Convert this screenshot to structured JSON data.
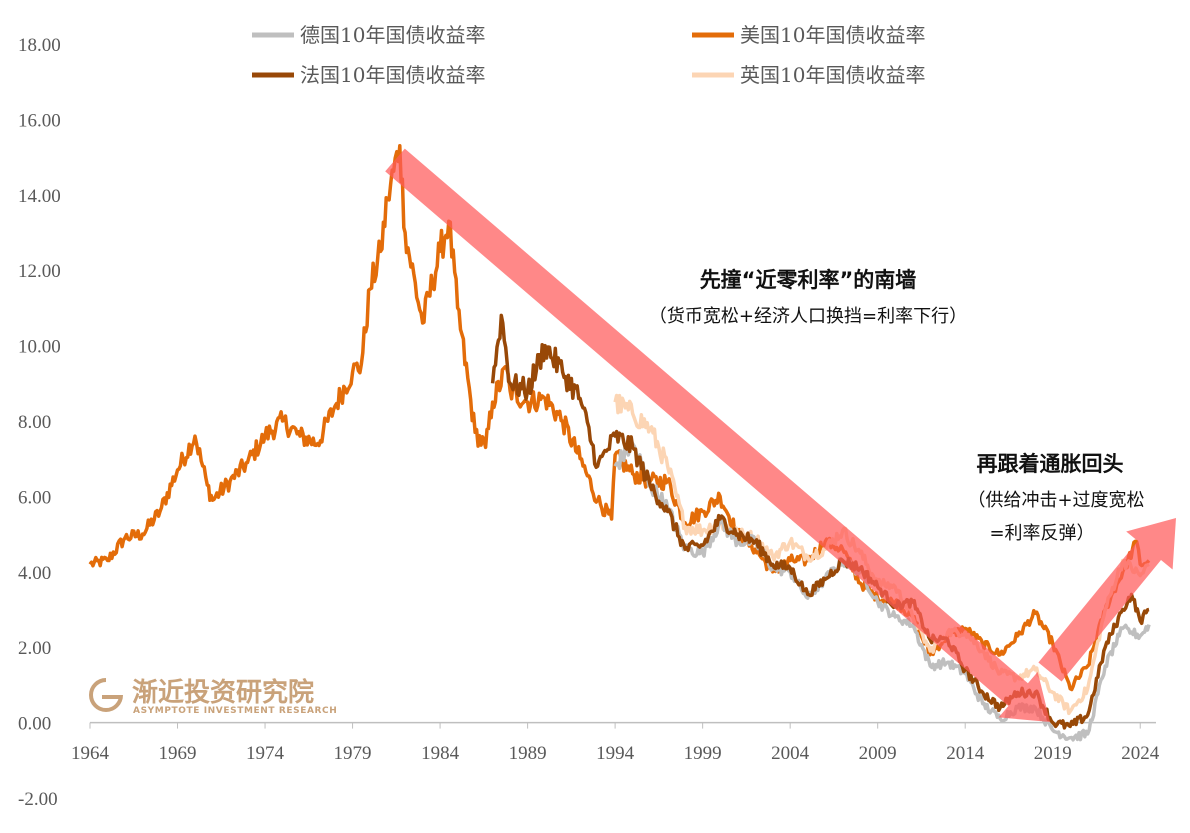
{
  "chart_data": {
    "type": "line",
    "title": "",
    "xlabel": "",
    "ylabel": "",
    "x_range": [
      1964,
      2024.9
    ],
    "ylim": [
      -2,
      18
    ],
    "y_ticks": [
      "18.00",
      "16.00",
      "14.00",
      "12.00",
      "10.00",
      "8.00",
      "6.00",
      "4.00",
      "2.00",
      "0.00",
      "-2.00"
    ],
    "y_tick_values": [
      18,
      16,
      14,
      12,
      10,
      8,
      6,
      4,
      2,
      0,
      -2
    ],
    "x_ticks": [
      "1964",
      "1969",
      "1974",
      "1979",
      "1984",
      "1989",
      "1994",
      "1999",
      "2004",
      "2009",
      "2014",
      "2019",
      "2024"
    ],
    "x_tick_values": [
      1964,
      1969,
      1974,
      1979,
      1984,
      1989,
      1994,
      1999,
      2004,
      2009,
      2014,
      2019,
      2024
    ],
    "series": [
      {
        "name": "德国10年国债收益率",
        "color": "#bfbfbf",
        "x": [
          1994,
          1995,
          1996,
          1997,
          1998,
          1999,
          2000,
          2001,
          2002,
          2003,
          2004,
          2005,
          2006,
          2007,
          2008,
          2009,
          2010,
          2011,
          2012,
          2013,
          2014,
          2015,
          2016,
          2017,
          2018,
          2019,
          2020,
          2021,
          2022,
          2022.8,
          2023,
          2023.5,
          2024,
          2024.5
        ],
        "values": [
          6.8,
          7.4,
          6.3,
          5.7,
          4.6,
          4.5,
          5.3,
          4.8,
          4.8,
          4.1,
          4.0,
          3.3,
          3.8,
          4.3,
          4.0,
          3.2,
          2.8,
          2.6,
          1.5,
          1.6,
          1.3,
          0.5,
          0.1,
          0.4,
          0.4,
          -0.2,
          -0.4,
          -0.3,
          1.5,
          2.3,
          2.5,
          2.4,
          2.3,
          2.6
        ]
      },
      {
        "name": "美国10年国债收益率",
        "color": "#e36c09",
        "x": [
          1964,
          1965,
          1966,
          1967,
          1968,
          1969,
          1970,
          1970.7,
          1971,
          1972,
          1973,
          1974,
          1975,
          1976,
          1977,
          1978,
          1979,
          1979.5,
          1980,
          1980.6,
          1981,
          1981.7,
          1982,
          1983,
          1984,
          1984.5,
          1985,
          1986,
          1986.6,
          1987,
          1987.8,
          1988,
          1989,
          1990,
          1991,
          1992,
          1993,
          1993.8,
          1994,
          1995,
          1996,
          1997,
          1998,
          1999,
          2000,
          2001,
          2002,
          2003,
          2004,
          2005,
          2006,
          2007,
          2008,
          2009,
          2010,
          2011,
          2012,
          2013,
          2014,
          2015,
          2016,
          2017,
          2018,
          2019,
          2020,
          2021,
          2022,
          2023,
          2023.8,
          2024,
          2024.5
        ],
        "values": [
          4.2,
          4.3,
          4.9,
          5.0,
          5.6,
          6.7,
          7.6,
          6.3,
          5.9,
          6.4,
          6.9,
          7.6,
          8.0,
          7.6,
          7.4,
          8.4,
          9.3,
          9.5,
          11.5,
          12.5,
          13.9,
          15.3,
          13.0,
          10.6,
          12.5,
          13.3,
          11.0,
          7.7,
          7.3,
          8.5,
          9.4,
          8.8,
          8.5,
          8.6,
          8.0,
          7.0,
          5.9,
          5.4,
          7.1,
          6.6,
          6.4,
          6.4,
          5.3,
          5.6,
          6.0,
          5.0,
          4.6,
          4.0,
          4.3,
          4.3,
          4.8,
          4.6,
          3.7,
          3.3,
          3.2,
          2.8,
          1.8,
          2.3,
          2.5,
          2.1,
          1.8,
          2.3,
          2.9,
          2.1,
          0.9,
          1.5,
          3.0,
          4.0,
          4.8,
          4.2,
          4.3
        ]
      },
      {
        "name": "法国10年国债收益率",
        "color": "#984807",
        "x": [
          1987,
          1987.5,
          1988,
          1989,
          1990,
          1991,
          1992,
          1993,
          1994,
          1995,
          1996,
          1997,
          1998,
          1999,
          2000,
          2001,
          2002,
          2003,
          2004,
          2005,
          2006,
          2007,
          2008,
          2009,
          2010,
          2011,
          2012,
          2013,
          2014,
          2015,
          2016,
          2017,
          2018,
          2019,
          2020,
          2021,
          2022,
          2023,
          2023.5,
          2024,
          2024.5
        ],
        "values": [
          9.0,
          10.8,
          9.0,
          8.8,
          10.0,
          9.3,
          8.6,
          6.8,
          7.6,
          7.3,
          6.3,
          5.6,
          4.6,
          4.7,
          5.4,
          5.0,
          4.8,
          4.2,
          4.1,
          3.4,
          3.8,
          4.3,
          4.1,
          3.6,
          3.1,
          3.2,
          2.2,
          2.2,
          1.4,
          0.8,
          0.4,
          0.8,
          0.8,
          0.0,
          -0.1,
          0.2,
          2.0,
          3.0,
          3.4,
          2.7,
          3.0
        ]
      },
      {
        "name": "英国10年国债收益率",
        "color": "#fcd5b4",
        "x": [
          1994,
          1995,
          1996,
          1997,
          1998,
          1999,
          2000,
          2001,
          2002,
          2003,
          2004,
          2005,
          2006,
          2007,
          2008,
          2009,
          2010,
          2011,
          2012,
          2013,
          2014,
          2015,
          2016,
          2017,
          2018,
          2019,
          2020,
          2021,
          2022,
          2023,
          2024,
          2024.5
        ],
        "values": [
          8.5,
          8.2,
          7.8,
          6.8,
          5.2,
          5.1,
          5.3,
          5.0,
          4.9,
          4.4,
          4.8,
          4.4,
          4.6,
          5.1,
          4.5,
          3.7,
          3.6,
          2.8,
          1.9,
          2.4,
          2.4,
          1.9,
          1.3,
          1.2,
          1.4,
          0.8,
          0.3,
          0.9,
          3.0,
          4.3,
          3.9,
          4.2
        ]
      }
    ],
    "annotations": [
      {
        "id": "down",
        "title": "先撞“近零利率”的南墙",
        "subtitle": "（货币宽松+经济人口换挡=利率下行）"
      },
      {
        "id": "up",
        "title": "再跟着通胀回头",
        "subtitle_line1": "（供给冲击+过度宽松",
        "subtitle_line2": "=利率反弹）"
      }
    ]
  },
  "logo": {
    "cn": "渐近投资研究院",
    "en": "ASYMPTOTE INVESTMENT RESEARCH"
  },
  "colors": {
    "arrow": "#ff5a5a",
    "axis": "#bfbfbf",
    "tick_text": "#595959"
  }
}
